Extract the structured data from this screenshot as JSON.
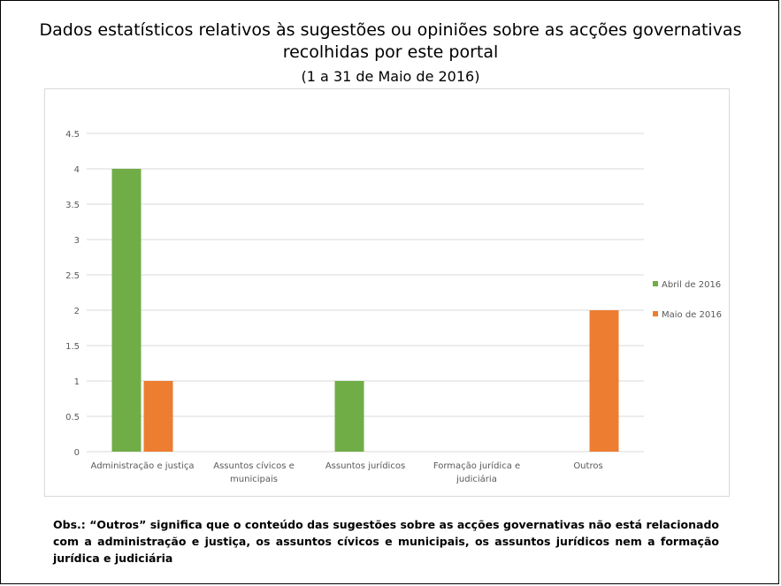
{
  "header": {
    "title": "Dados estatísticos relativos às sugestões ou opiniões sobre as acções governativas recolhidas por este portal",
    "subtitle": "(1 a 31 de Maio de 2016)"
  },
  "note": "Obs.: “Outros” significa que o conteúdo das sugestões sobre as acções governativas não está relacionado com a administração e justiça, os assuntos cívicos e municipais, os assuntos jurídicos nem a formação jurídica e judiciária",
  "chart_data": {
    "type": "bar",
    "categories": [
      [
        "Administração e justiça"
      ],
      [
        "Assuntos cívicos e",
        "municipais"
      ],
      [
        "Assuntos jurídicos"
      ],
      [
        "Formação jurídica e",
        "judiciária"
      ],
      [
        "Outros"
      ]
    ],
    "series": [
      {
        "name": "Abril de 2016",
        "color": "#70ad47",
        "values": [
          4,
          0,
          1,
          0,
          0
        ]
      },
      {
        "name": "Maio de 2016",
        "color": "#ed7d31",
        "values": [
          1,
          0,
          0,
          0,
          2
        ]
      }
    ],
    "y_ticks": [
      "0",
      "0.5",
      "1",
      "1.5",
      "2",
      "2.5",
      "3",
      "3.5",
      "4",
      "4.5"
    ],
    "ylim": [
      0,
      4.5
    ],
    "grid": true,
    "legend_position": "right"
  }
}
